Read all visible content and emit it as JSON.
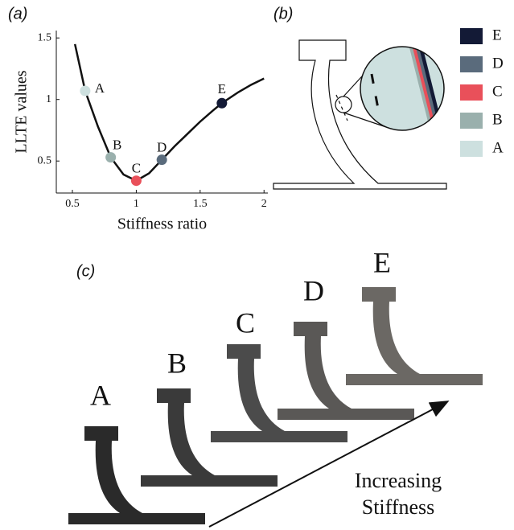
{
  "panel_labels": {
    "a": "(a)",
    "b": "(b)",
    "c": "(c)"
  },
  "chart_data": {
    "type": "line",
    "x_label": "Stiffness ratio",
    "y_label": "LLTE values",
    "xlim": [
      0.374,
      2.03
    ],
    "ylim": [
      0.24,
      1.56
    ],
    "xticks": [
      0.5,
      1,
      1.5,
      2
    ],
    "yticks": [
      0.5,
      1,
      1.5
    ],
    "series": [
      {
        "color": "#111111",
        "x": [
          0.52,
          0.6,
          0.7,
          0.8,
          0.9,
          1.0,
          1.1,
          1.2,
          1.3,
          1.4,
          1.5,
          1.6,
          1.67,
          1.8,
          1.9,
          2.0
        ],
        "values": [
          1.45,
          1.07,
          0.78,
          0.53,
          0.39,
          0.34,
          0.4,
          0.51,
          0.62,
          0.72,
          0.82,
          0.91,
          0.97,
          1.06,
          1.12,
          1.17
        ]
      }
    ],
    "points": {
      "labels": [
        "A",
        "B",
        "C",
        "D",
        "E"
      ],
      "x": [
        0.6,
        0.8,
        1.0,
        1.2,
        1.67
      ],
      "values": [
        1.07,
        0.53,
        0.34,
        0.51,
        0.97
      ],
      "colors": [
        "#cde0df",
        "#9ab0ad",
        "#e9505a",
        "#5a6b7c",
        "#131a36"
      ]
    }
  },
  "diagram": {
    "legend": [
      {
        "label": "E",
        "color": "#131a36"
      },
      {
        "label": "D",
        "color": "#5a6b7c"
      },
      {
        "label": "C",
        "color": "#e9505a"
      },
      {
        "label": "B",
        "color": "#9ab0ad"
      },
      {
        "label": "A",
        "color": "#cde0df"
      }
    ]
  },
  "photo": {
    "labels": [
      "A",
      "B",
      "C",
      "D",
      "E"
    ],
    "arrow_text": [
      "Increasing",
      "Stiffness"
    ]
  }
}
